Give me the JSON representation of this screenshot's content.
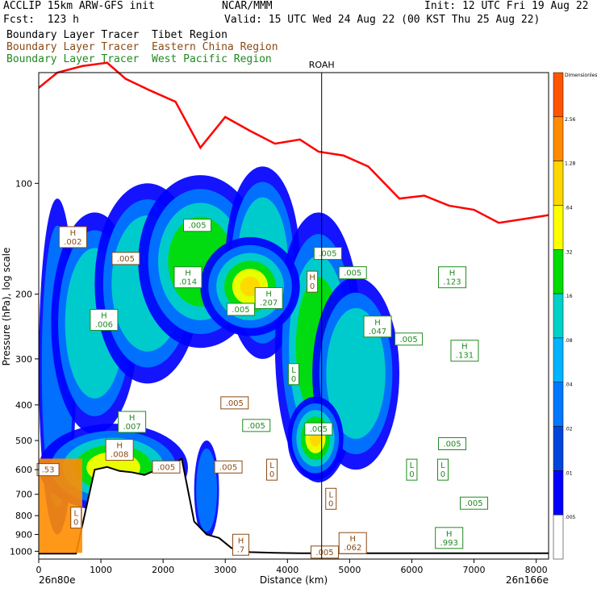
{
  "header": {
    "model": "ACCLIP 15km ARW-GFS init",
    "forecast": "Fcst:  123 h",
    "producer": "NCAR/MMM",
    "init": "Init: 12 UTC Fri 19 Aug 22",
    "valid": "Valid: 15 UTC Wed 24 Aug 22 (00 KST Thu 25 Aug 22)",
    "legend": [
      {
        "text": "Boundary Layer Tracer  Tibet Region",
        "color": "#000000"
      },
      {
        "text": "Boundary Layer Tracer  Eastern China Region",
        "color": "#8b4a13"
      },
      {
        "text": "Boundary Layer Tracer  West Pacific Region",
        "color": "#1f8a1f"
      }
    ]
  },
  "chart_data": {
    "type": "area",
    "title": "",
    "xlabel": "Distance (km)",
    "ylabel": "Pressure (hPa), log scale",
    "xlim": [
      0,
      8200
    ],
    "ylim": [
      1050,
      50
    ],
    "log_y": true,
    "x_ticks": [
      0,
      1000,
      2000,
      3000,
      4000,
      5000,
      6000,
      7000,
      8000
    ],
    "y_ticks": [
      100,
      200,
      300,
      400,
      500,
      600,
      700,
      800,
      900,
      1000
    ],
    "start_label": "26n80e",
    "end_label": "26n166e",
    "station_marker": {
      "label": "ROAH",
      "x": 4550
    },
    "tropopause_line": {
      "color": "#ff0000",
      "x": [
        0,
        300,
        700,
        1100,
        1400,
        1800,
        2200,
        2600,
        3000,
        3400,
        3800,
        4200,
        4500,
        4900,
        5300,
        5800,
        6200,
        6600,
        7000,
        7400,
        7800,
        8200
      ],
      "p": [
        55,
        50,
        48,
        47,
        52,
        56,
        60,
        80,
        66,
        72,
        78,
        76,
        82,
        84,
        90,
        110,
        108,
        115,
        118,
        128,
        125,
        122
      ]
    },
    "terrain": {
      "x": [
        0,
        300,
        600,
        900,
        1100,
        1300,
        1500,
        1700,
        1900,
        2100,
        2300,
        2500,
        2700,
        2900,
        3100,
        3400,
        3800,
        4200,
        5000,
        6000,
        7000,
        8200
      ],
      "p": [
        1015,
        1015,
        1015,
        600,
        590,
        605,
        610,
        620,
        600,
        590,
        560,
        830,
        900,
        920,
        980,
        1005,
        1010,
        1012,
        1012,
        1012,
        1012,
        1012
      ]
    },
    "colorbar": {
      "levels": [
        "Dimensionless",
        "2.56",
        "1.28",
        ".64",
        ".32",
        ".16",
        ".08",
        ".04",
        ".02",
        ".01",
        ".005"
      ],
      "colors": [
        "#ff5500",
        "#ff8c00",
        "#ffd700",
        "#ffff00",
        "#00dd00",
        "#00d2c8",
        "#00b4ff",
        "#0078ff",
        "#0046dc",
        "#0000ff",
        "#ffffff"
      ]
    },
    "series": [
      {
        "name": "Boundary Layer Tracer  Tibet Region",
        "kind": "filled"
      },
      {
        "name": "Boundary Layer Tracer  Eastern China Region",
        "kind": "contour",
        "color": "#8b4a13"
      },
      {
        "name": "Boundary Layer Tracer  West Pacific Region",
        "kind": "contour-dashed",
        "color": "#1f8a1f"
      }
    ],
    "plumes": [
      {
        "x0": 0,
        "x1": 600,
        "p_top": 110,
        "p_bot": 900,
        "level": 1
      },
      {
        "x0": 200,
        "x1": 1600,
        "p_top": 120,
        "p_bot": 480,
        "level": 2
      },
      {
        "x0": 900,
        "x1": 2600,
        "p_top": 100,
        "p_bot": 350,
        "level": 2
      },
      {
        "x0": 1600,
        "x1": 3600,
        "p_top": 95,
        "p_bot": 280,
        "level": 3
      },
      {
        "x0": 3000,
        "x1": 4200,
        "p_top": 90,
        "p_bot": 300,
        "level": 2
      },
      {
        "x0": 3800,
        "x1": 5200,
        "p_top": 120,
        "p_bot": 650,
        "level": 3
      },
      {
        "x0": 4400,
        "x1": 5800,
        "p_top": 180,
        "p_bot": 600,
        "level": 2
      },
      {
        "x0": 2500,
        "x1": 2900,
        "p_top": 500,
        "p_bot": 930,
        "level": 1
      },
      {
        "x0": 0,
        "x1": 2400,
        "p_top": 450,
        "p_bot": 780,
        "level": 4
      },
      {
        "x0": 4000,
        "x1": 4900,
        "p_top": 380,
        "p_bot": 640,
        "level": 5
      },
      {
        "x0": 2600,
        "x1": 4200,
        "p_top": 140,
        "p_bot": 260,
        "level": 5
      }
    ],
    "labels": [
      {
        "text": "H\n.002",
        "x": 550,
        "p": 140,
        "color": "#8b4a13"
      },
      {
        "text": "H\n.006",
        "x": 1050,
        "p": 235,
        "color": "#1f8a1f"
      },
      {
        "text": ".005",
        "x": 2550,
        "p": 130,
        "color": "#1f8a1f"
      },
      {
        "text": "H\n.014",
        "x": 2400,
        "p": 180,
        "color": "#1f8a1f"
      },
      {
        "text": ".005",
        "x": 3250,
        "p": 220,
        "color": "#1f8a1f"
      },
      {
        "text": "H\n.207",
        "x": 3700,
        "p": 205,
        "color": "#1f8a1f"
      },
      {
        "text": ".005",
        "x": 4650,
        "p": 155,
        "color": "#1f8a1f"
      },
      {
        "text": ".005",
        "x": 5050,
        "p": 175,
        "color": "#1f8a1f"
      },
      {
        "text": "H\n.047",
        "x": 5450,
        "p": 245,
        "color": "#1f8a1f"
      },
      {
        "text": ".005",
        "x": 5950,
        "p": 265,
        "color": "#1f8a1f"
      },
      {
        "text": "H\n.123",
        "x": 6650,
        "p": 180,
        "color": "#1f8a1f"
      },
      {
        "text": "H\n.131",
        "x": 6850,
        "p": 285,
        "color": "#1f8a1f"
      },
      {
        "text": ".005",
        "x": 4500,
        "p": 465,
        "color": "#1f8a1f"
      },
      {
        "text": ".005",
        "x": 3150,
        "p": 395,
        "color": "#8b4a13"
      },
      {
        "text": ".005",
        "x": 3500,
        "p": 455,
        "color": "#1f8a1f"
      },
      {
        "text": "H\n.007",
        "x": 1500,
        "p": 445,
        "color": "#1f8a1f"
      },
      {
        "text": "H\n.008",
        "x": 1300,
        "p": 530,
        "color": "#8b4a13"
      },
      {
        "text": ".005",
        "x": 3050,
        "p": 590,
        "color": "#8b4a13"
      },
      {
        "text": ".005",
        "x": 6650,
        "p": 510,
        "color": "#1f8a1f"
      },
      {
        "text": "L\n0",
        "x": 6000,
        "p": 600,
        "color": "#1f8a1f"
      },
      {
        "text": "L\n0",
        "x": 6500,
        "p": 600,
        "color": "#1f8a1f"
      },
      {
        "text": ".005",
        "x": 7000,
        "p": 740,
        "color": "#1f8a1f"
      },
      {
        "text": "H\n.993",
        "x": 6600,
        "p": 920,
        "color": "#1f8a1f"
      },
      {
        "text": "H\n.062",
        "x": 5050,
        "p": 950,
        "color": "#8b4a13"
      },
      {
        "text": ".005",
        "x": 4600,
        "p": 1005,
        "color": "#8b4a13"
      },
      {
        "text": "L\n0",
        "x": 3750,
        "p": 600,
        "color": "#8b4a13"
      },
      {
        "text": "L\n0",
        "x": 4700,
        "p": 720,
        "color": "#8b4a13"
      },
      {
        "text": "L\n0",
        "x": 4100,
        "p": 330,
        "color": "#1f8a1f"
      },
      {
        "text": "H\n0",
        "x": 4400,
        "p": 185,
        "color": "#8b4a13"
      },
      {
        "text": ".005",
        "x": 1400,
        "p": 160,
        "color": "#8b4a13"
      },
      {
        "text": ".005",
        "x": 2050,
        "p": 590,
        "color": "#8b4a13"
      },
      {
        "text": ".53",
        "x": 150,
        "p": 600,
        "color": "#8b4a13"
      },
      {
        "text": "H\n.7",
        "x": 3250,
        "p": 960,
        "color": "#8b4a13"
      },
      {
        "text": "L\n0",
        "x": 600,
        "p": 810,
        "color": "#8b4a13"
      }
    ]
  }
}
